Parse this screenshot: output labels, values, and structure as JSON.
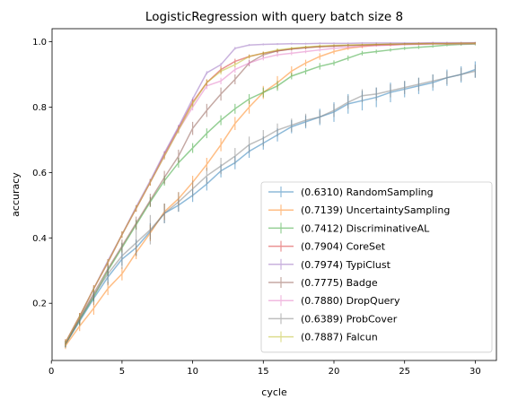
{
  "chart_data": {
    "type": "line",
    "title": "LogisticRegression with query batch size 8",
    "xlabel": "cycle",
    "ylabel": "accuracy",
    "xlim": [
      0.05,
      31.5
    ],
    "ylim": [
      0.025,
      1.04
    ],
    "xticks": [
      0,
      5,
      10,
      15,
      20,
      25,
      30
    ],
    "yticks": [
      0.2,
      0.4,
      0.6,
      0.8,
      1.0
    ],
    "ytick_labels": [
      "0.2",
      "0.4",
      "0.6",
      "0.8",
      "1.0"
    ],
    "grid": false,
    "legend_position": "lower-right",
    "x": [
      1,
      2,
      3,
      4,
      5,
      6,
      7,
      8,
      9,
      10,
      11,
      12,
      13,
      14,
      15,
      16,
      17,
      18,
      19,
      20,
      21,
      22,
      23,
      24,
      25,
      26,
      27,
      28,
      29,
      30
    ],
    "series": [
      {
        "name": "(0.6310) RandomSampling",
        "color": "#1f77b4",
        "values": [
          0.075,
          0.145,
          0.215,
          0.28,
          0.335,
          0.37,
          0.42,
          0.475,
          0.5,
          0.53,
          0.565,
          0.605,
          0.63,
          0.665,
          0.69,
          0.715,
          0.74,
          0.755,
          0.77,
          0.785,
          0.81,
          0.82,
          0.83,
          0.845,
          0.855,
          0.865,
          0.875,
          0.89,
          0.9,
          0.915
        ],
        "err": [
          0.01,
          0.015,
          0.02,
          0.025,
          0.02,
          0.025,
          0.025,
          0.03,
          0.02,
          0.02,
          0.02,
          0.02,
          0.02,
          0.02,
          0.02,
          0.02,
          0.02,
          0.02,
          0.025,
          0.03,
          0.03,
          0.03,
          0.03,
          0.03,
          0.025,
          0.025,
          0.025,
          0.025,
          0.025,
          0.025
        ]
      },
      {
        "name": "(0.7139) UncertaintySampling",
        "color": "#ff7f0e",
        "values": [
          0.07,
          0.13,
          0.185,
          0.245,
          0.29,
          0.355,
          0.415,
          0.48,
          0.52,
          0.57,
          0.625,
          0.685,
          0.75,
          0.8,
          0.845,
          0.875,
          0.91,
          0.935,
          0.955,
          0.97,
          0.98,
          0.985,
          0.99,
          0.99,
          0.993,
          0.995,
          0.995,
          0.995,
          0.996,
          0.996
        ],
        "err": [
          0.01,
          0.015,
          0.02,
          0.02,
          0.02,
          0.02,
          0.025,
          0.025,
          0.02,
          0.02,
          0.02,
          0.02,
          0.02,
          0.02,
          0.02,
          0.02,
          0.015,
          0.01,
          0.01,
          0.008,
          0.005,
          0.005,
          0.004,
          0.004,
          0.003,
          0.003,
          0.003,
          0.003,
          0.003,
          0.003
        ]
      },
      {
        "name": "(0.7412) DiscriminativeAL",
        "color": "#2ca02c",
        "values": [
          0.075,
          0.15,
          0.22,
          0.3,
          0.37,
          0.44,
          0.51,
          0.575,
          0.63,
          0.675,
          0.72,
          0.76,
          0.795,
          0.825,
          0.845,
          0.865,
          0.895,
          0.91,
          0.925,
          0.935,
          0.95,
          0.965,
          0.97,
          0.975,
          0.98,
          0.983,
          0.986,
          0.99,
          0.992,
          0.993
        ],
        "err": [
          0.01,
          0.015,
          0.015,
          0.015,
          0.015,
          0.015,
          0.015,
          0.015,
          0.015,
          0.015,
          0.015,
          0.015,
          0.015,
          0.015,
          0.015,
          0.015,
          0.01,
          0.01,
          0.01,
          0.008,
          0.008,
          0.007,
          0.006,
          0.005,
          0.005,
          0.005,
          0.004,
          0.004,
          0.004,
          0.004
        ]
      },
      {
        "name": "(0.7904) CoreSet",
        "color": "#d62728",
        "values": [
          0.08,
          0.16,
          0.245,
          0.325,
          0.41,
          0.49,
          0.57,
          0.655,
          0.735,
          0.815,
          0.875,
          0.915,
          0.94,
          0.955,
          0.965,
          0.972,
          0.978,
          0.982,
          0.985,
          0.987,
          0.989,
          0.99,
          0.991,
          0.992,
          0.993,
          0.993,
          0.994,
          0.994,
          0.994,
          0.995
        ],
        "err": [
          0.01,
          0.01,
          0.01,
          0.01,
          0.01,
          0.01,
          0.01,
          0.01,
          0.01,
          0.01,
          0.01,
          0.01,
          0.008,
          0.006,
          0.005,
          0.005,
          0.004,
          0.004,
          0.004,
          0.003,
          0.003,
          0.003,
          0.003,
          0.003,
          0.003,
          0.003,
          0.003,
          0.003,
          0.003,
          0.003
        ]
      },
      {
        "name": "(0.7974) TypiClust",
        "color": "#9467bd",
        "values": [
          0.08,
          0.16,
          0.245,
          0.33,
          0.41,
          0.495,
          0.575,
          0.66,
          0.74,
          0.825,
          0.905,
          0.93,
          0.98,
          0.99,
          0.992,
          0.993,
          0.994,
          0.994,
          0.995,
          0.995,
          0.995,
          0.996,
          0.996,
          0.996,
          0.996,
          0.996,
          0.997,
          0.997,
          0.997,
          0.997
        ],
        "err": [
          0.005,
          0.005,
          0.005,
          0.005,
          0.005,
          0.005,
          0.005,
          0.005,
          0.005,
          0.005,
          0.005,
          0.005,
          0.004,
          0.003,
          0.003,
          0.003,
          0.003,
          0.003,
          0.003,
          0.003,
          0.003,
          0.003,
          0.003,
          0.003,
          0.003,
          0.003,
          0.003,
          0.003,
          0.003,
          0.003
        ]
      },
      {
        "name": "(0.7775) Badge",
        "color": "#8c564b",
        "values": [
          0.075,
          0.155,
          0.23,
          0.305,
          0.375,
          0.445,
          0.515,
          0.585,
          0.65,
          0.735,
          0.79,
          0.84,
          0.885,
          0.935,
          0.96,
          0.972,
          0.978,
          0.982,
          0.985,
          0.987,
          0.989,
          0.99,
          0.991,
          0.992,
          0.993,
          0.993,
          0.994,
          0.994,
          0.994,
          0.995
        ],
        "err": [
          0.01,
          0.015,
          0.02,
          0.02,
          0.02,
          0.02,
          0.02,
          0.02,
          0.02,
          0.02,
          0.02,
          0.02,
          0.015,
          0.01,
          0.008,
          0.006,
          0.005,
          0.005,
          0.004,
          0.004,
          0.004,
          0.003,
          0.003,
          0.003,
          0.003,
          0.003,
          0.003,
          0.003,
          0.003,
          0.003
        ]
      },
      {
        "name": "(0.7880) DropQuery",
        "color": "#e377c2",
        "values": [
          0.08,
          0.16,
          0.245,
          0.325,
          0.41,
          0.49,
          0.57,
          0.65,
          0.73,
          0.8,
          0.865,
          0.88,
          0.915,
          0.935,
          0.95,
          0.96,
          0.965,
          0.97,
          0.975,
          0.98,
          0.983,
          0.986,
          0.988,
          0.99,
          0.991,
          0.992,
          0.993,
          0.993,
          0.994,
          0.994
        ],
        "err": [
          0.01,
          0.01,
          0.01,
          0.01,
          0.01,
          0.01,
          0.01,
          0.01,
          0.01,
          0.01,
          0.01,
          0.01,
          0.01,
          0.008,
          0.007,
          0.006,
          0.006,
          0.005,
          0.005,
          0.004,
          0.004,
          0.004,
          0.003,
          0.003,
          0.003,
          0.003,
          0.003,
          0.003,
          0.003,
          0.003
        ]
      },
      {
        "name": "(0.6389) ProbCover",
        "color": "#7f7f7f",
        "values": [
          0.075,
          0.15,
          0.225,
          0.29,
          0.345,
          0.385,
          0.425,
          0.475,
          0.51,
          0.55,
          0.59,
          0.62,
          0.65,
          0.685,
          0.705,
          0.73,
          0.745,
          0.76,
          0.77,
          0.79,
          0.815,
          0.835,
          0.84,
          0.85,
          0.86,
          0.87,
          0.88,
          0.89,
          0.9,
          0.91
        ],
        "err": [
          0.01,
          0.015,
          0.02,
          0.03,
          0.04,
          0.04,
          0.045,
          0.03,
          0.03,
          0.025,
          0.025,
          0.025,
          0.025,
          0.025,
          0.025,
          0.02,
          0.02,
          0.02,
          0.02,
          0.02,
          0.02,
          0.02,
          0.02,
          0.02,
          0.02,
          0.02,
          0.02,
          0.02,
          0.02,
          0.02
        ]
      },
      {
        "name": "(0.7887) Falcun",
        "color": "#bcbd22",
        "values": [
          0.08,
          0.16,
          0.245,
          0.325,
          0.41,
          0.49,
          0.57,
          0.65,
          0.73,
          0.81,
          0.875,
          0.91,
          0.93,
          0.955,
          0.965,
          0.975,
          0.98,
          0.984,
          0.987,
          0.989,
          0.99,
          0.991,
          0.992,
          0.993,
          0.993,
          0.994,
          0.994,
          0.994,
          0.995,
          0.995
        ],
        "err": [
          0.01,
          0.01,
          0.01,
          0.01,
          0.01,
          0.01,
          0.01,
          0.01,
          0.01,
          0.01,
          0.01,
          0.01,
          0.008,
          0.006,
          0.005,
          0.005,
          0.004,
          0.004,
          0.004,
          0.003,
          0.003,
          0.003,
          0.003,
          0.003,
          0.003,
          0.003,
          0.003,
          0.003,
          0.003,
          0.003
        ]
      }
    ]
  }
}
